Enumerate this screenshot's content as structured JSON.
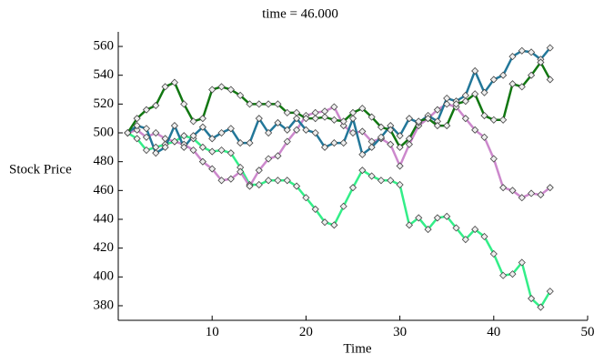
{
  "chart_data": {
    "type": "line",
    "title": "time = 46.000",
    "xlabel": "Time",
    "ylabel": "Stock Price",
    "x": [
      1,
      2,
      3,
      4,
      5,
      6,
      7,
      8,
      9,
      10,
      11,
      12,
      13,
      14,
      15,
      16,
      17,
      18,
      19,
      20,
      21,
      22,
      23,
      24,
      25,
      26,
      27,
      28,
      29,
      30,
      31,
      32,
      33,
      34,
      35,
      36,
      37,
      38,
      39,
      40,
      41,
      42,
      43,
      44,
      45,
      46
    ],
    "series": [
      {
        "color": "#33ee88",
        "values": [
          500,
          496,
          488,
          490,
          492,
          494,
          498,
          496,
          490,
          487,
          488,
          486,
          476,
          464,
          464,
          467,
          467,
          467,
          463,
          455,
          447,
          438,
          436,
          449,
          462,
          474,
          470,
          467,
          467,
          464,
          436,
          441,
          433,
          441,
          442,
          434,
          426,
          433,
          428,
          416,
          401,
          402,
          410,
          385,
          379,
          390
        ]
      },
      {
        "color": "#cc88cc",
        "values": [
          500,
          502,
          497,
          500,
          496,
          494,
          492,
          488,
          480,
          475,
          467,
          468,
          473,
          463,
          474,
          482,
          484,
          494,
          502,
          512,
          514,
          515,
          518,
          505,
          500,
          501,
          494,
          496,
          492,
          477,
          492,
          505,
          510,
          516,
          520,
          518,
          510,
          502,
          497,
          482,
          462,
          460,
          455,
          458,
          457,
          462
        ]
      },
      {
        "color": "#227799",
        "values": [
          500,
          505,
          503,
          486,
          490,
          505,
          490,
          498,
          504,
          496,
          500,
          503,
          493,
          493,
          510,
          500,
          507,
          502,
          510,
          502,
          500,
          490,
          493,
          493,
          510,
          485,
          490,
          497,
          505,
          498,
          510,
          507,
          512,
          508,
          524,
          522,
          526,
          543,
          528,
          537,
          540,
          553,
          557,
          556,
          551,
          559
        ]
      },
      {
        "color": "#117711",
        "values": [
          500,
          510,
          516,
          519,
          532,
          535,
          520,
          508,
          510,
          530,
          532,
          530,
          526,
          520,
          520,
          520,
          520,
          514,
          514,
          510,
          510,
          511,
          509,
          508,
          514,
          517,
          511,
          504,
          502,
          490,
          496,
          508,
          510,
          505,
          505,
          520,
          522,
          527,
          512,
          509,
          509,
          534,
          532,
          540,
          549,
          537
        ]
      }
    ],
    "xlim": [
      0,
      50
    ],
    "ylim": [
      370,
      570
    ],
    "xticks": [
      10,
      20,
      30,
      40,
      50
    ],
    "yticks": [
      380,
      400,
      420,
      440,
      460,
      480,
      500,
      520,
      540,
      560
    ]
  }
}
